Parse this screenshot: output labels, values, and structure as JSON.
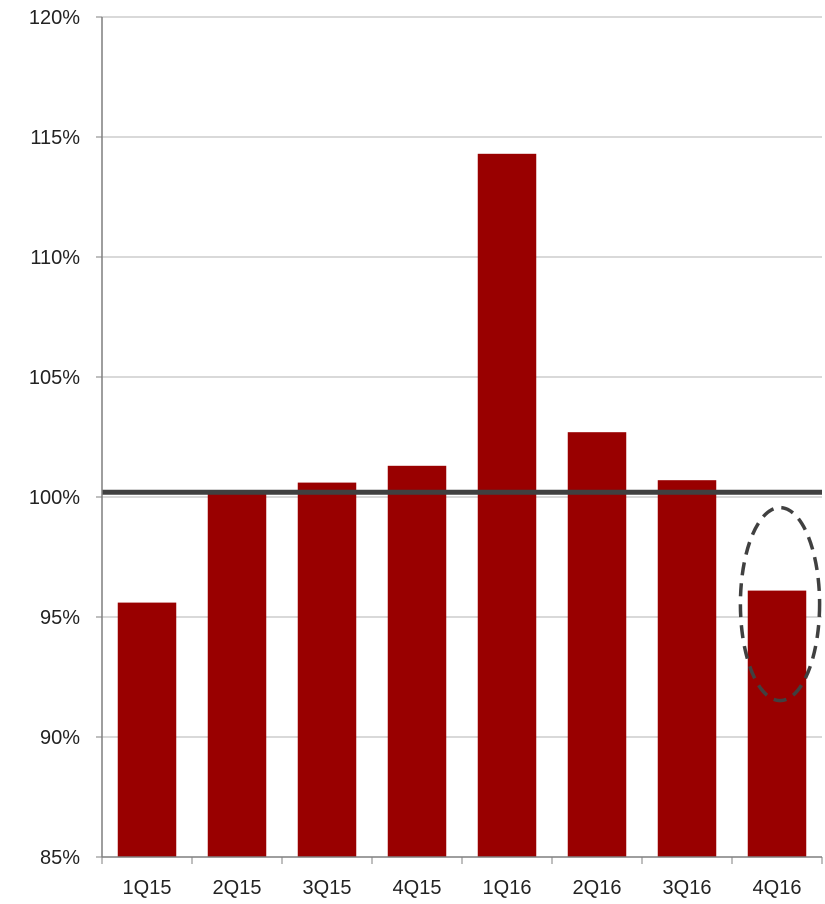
{
  "chart_data": {
    "type": "bar",
    "categories": [
      "1Q15",
      "2Q15",
      "3Q15",
      "4Q15",
      "1Q16",
      "2Q16",
      "3Q16",
      "4Q16"
    ],
    "values": [
      95.6,
      100.2,
      100.6,
      101.3,
      114.3,
      102.7,
      100.7,
      96.1
    ],
    "ylim": [
      85,
      120
    ],
    "y_ticks": [
      85,
      90,
      95,
      100,
      105,
      110,
      115,
      120
    ],
    "y_tick_labels": [
      "85%",
      "90%",
      "95%",
      "100%",
      "105%",
      "110%",
      "115%",
      "120%"
    ],
    "reference_line": 100.2,
    "highlighted_category": "4Q16",
    "grid": true,
    "legend": "none",
    "title": "",
    "xlabel": "",
    "ylabel": "",
    "colors": {
      "bar": "#990000",
      "reference_line": "#404040",
      "grid": "#b3b3b3",
      "axis": "#7f7f7f",
      "highlight_ellipse": "#404040"
    }
  }
}
